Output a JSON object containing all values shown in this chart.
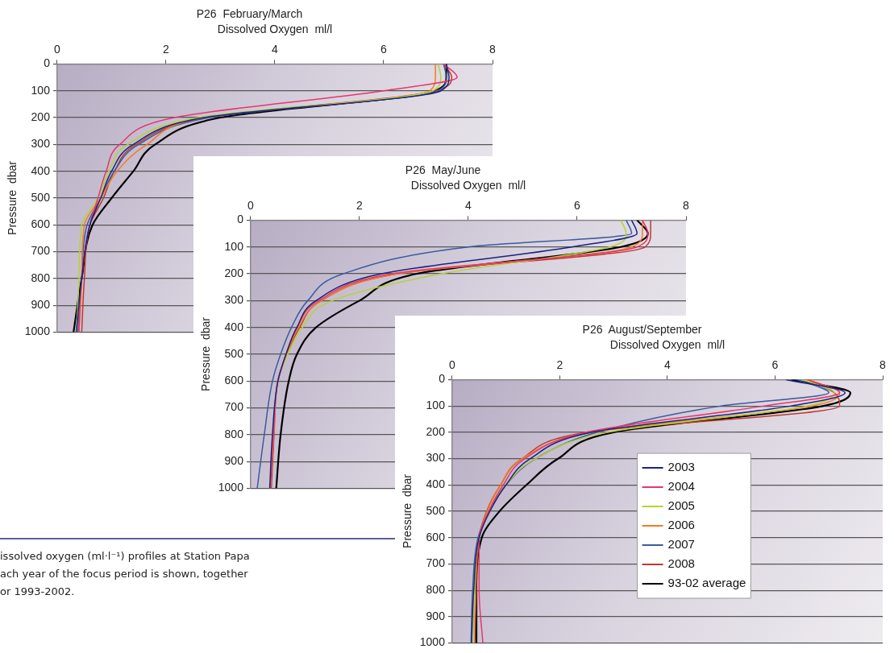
{
  "chart_data": [
    {
      "type": "line",
      "title": "P26  February/March",
      "xlabel": "Dissolved Oxygen  ml/l",
      "ylabel": "Pressure  dbar",
      "xlim": [
        0,
        8
      ],
      "xticks": [
        0,
        2,
        4,
        6,
        8
      ],
      "ylim": [
        1000,
        0
      ],
      "yticks": [
        0,
        100,
        200,
        300,
        400,
        500,
        600,
        700,
        800,
        900,
        1000
      ],
      "grid": "y",
      "legend": false,
      "line_style": "solid",
      "annotations": [
        "issolved oxygen (ml·l⁻¹) profiles at Station Papa",
        "ach year of the focus period is shown, together",
        "or 1993-2002."
      ],
      "series": [
        {
          "color": "#1a237e",
          "x": [
            7.15,
            7.2,
            7.05,
            2.7,
            1.4,
            1.0,
            0.8,
            0.6,
            0.45,
            0.35
          ],
          "values": [
            0,
            50,
            100,
            200,
            300,
            400,
            500,
            600,
            800,
            1000
          ]
        },
        {
          "color": "#e8356d",
          "x": [
            7.1,
            7.35,
            6.0,
            2.15,
            1.15,
            0.9,
            0.75,
            0.6,
            0.45,
            0.4
          ],
          "values": [
            0,
            50,
            100,
            200,
            300,
            400,
            500,
            600,
            800,
            1000
          ]
        },
        {
          "color": "#b5d334",
          "x": [
            7.0,
            7.05,
            6.9,
            2.6,
            1.3,
            0.95,
            0.75,
            0.45,
            0.4,
            0.35
          ],
          "values": [
            0,
            50,
            100,
            200,
            300,
            400,
            500,
            600,
            800,
            1000
          ]
        },
        {
          "color": "#f47b20",
          "x": [
            6.95,
            6.95,
            6.85,
            2.7,
            1.65,
            1.1,
            0.8,
            0.5,
            0.45,
            0.4
          ],
          "values": [
            0,
            50,
            100,
            200,
            300,
            400,
            500,
            600,
            800,
            1000
          ]
        },
        {
          "color": "#3a5ba0",
          "x": [
            7.1,
            7.15,
            7.0,
            2.8,
            1.5,
            1.05,
            0.8,
            0.55,
            0.45,
            0.38
          ],
          "values": [
            0,
            50,
            100,
            200,
            300,
            400,
            500,
            600,
            800,
            1000
          ]
        },
        {
          "color": "#c0392b",
          "x": [
            7.1,
            7.25,
            6.95,
            2.75,
            1.45,
            1.05,
            0.85,
            0.6,
            0.5,
            0.45
          ],
          "values": [
            0,
            50,
            100,
            200,
            300,
            400,
            500,
            600,
            800,
            1000
          ]
        },
        {
          "color": "#000000",
          "x": [
            7.15,
            7.15,
            6.95,
            3.0,
            1.8,
            1.4,
            1.0,
            0.65,
            0.45,
            0.3
          ],
          "values": [
            0,
            50,
            100,
            200,
            300,
            400,
            500,
            600,
            800,
            1000
          ]
        }
      ]
    },
    {
      "type": "line",
      "title": "P26  May/June",
      "xlabel": "Dissolved Oxygen  ml/l",
      "ylabel": "Pressure  dbar",
      "xlim": [
        0,
        8
      ],
      "xticks": [
        0,
        2,
        4,
        6,
        8
      ],
      "ylim": [
        1000,
        0
      ],
      "yticks": [
        0,
        100,
        200,
        300,
        400,
        500,
        600,
        700,
        800,
        900,
        1000
      ],
      "grid": "y",
      "legend": false,
      "line_style": "solid",
      "series": [
        {
          "color": "#1a237e",
          "x": [
            7.0,
            7.1,
            5.9,
            2.4,
            1.2,
            0.85,
            0.65,
            0.5,
            0.4,
            0.35
          ],
          "values": [
            0,
            50,
            100,
            200,
            300,
            400,
            500,
            600,
            800,
            1000
          ]
        },
        {
          "color": "#e8356d",
          "x": [
            7.2,
            7.3,
            7.1,
            2.6,
            1.25,
            0.85,
            0.65,
            0.5,
            0.42,
            0.36
          ],
          "values": [
            0,
            50,
            100,
            200,
            300,
            400,
            500,
            600,
            800,
            1000
          ]
        },
        {
          "color": "#b5d334",
          "x": [
            6.8,
            6.9,
            6.6,
            3.5,
            1.5,
            0.95,
            0.68,
            0.5,
            0.42,
            0.36
          ],
          "values": [
            0,
            50,
            100,
            200,
            300,
            400,
            500,
            600,
            800,
            1000
          ]
        },
        {
          "color": "#f47b20",
          "x": [
            7.2,
            7.2,
            7.0,
            2.7,
            1.3,
            0.88,
            0.66,
            0.5,
            0.42,
            0.36
          ],
          "values": [
            0,
            50,
            100,
            200,
            300,
            400,
            500,
            600,
            800,
            1000
          ]
        },
        {
          "color": "#3a5ba0",
          "x": [
            6.9,
            7.0,
            4.0,
            1.7,
            1.05,
            0.75,
            0.55,
            0.4,
            0.25,
            0.12
          ],
          "values": [
            0,
            50,
            100,
            200,
            300,
            400,
            500,
            600,
            800,
            1000
          ]
        },
        {
          "color": "#c0392b",
          "x": [
            7.35,
            7.35,
            7.25,
            2.7,
            1.3,
            0.9,
            0.67,
            0.5,
            0.43,
            0.38
          ],
          "values": [
            0,
            50,
            100,
            200,
            300,
            400,
            500,
            600,
            800,
            1000
          ]
        },
        {
          "color": "#000000",
          "x": [
            7.1,
            7.3,
            6.8,
            3.05,
            2.0,
            1.2,
            0.85,
            0.7,
            0.55,
            0.47
          ],
          "values": [
            0,
            50,
            100,
            200,
            300,
            400,
            500,
            600,
            800,
            1000
          ]
        }
      ]
    },
    {
      "type": "line",
      "title": "P26  August/September",
      "xlabel": "Dissolved Oxygen  ml/l",
      "ylabel": "Pressure  dbar",
      "xlim": [
        0,
        8
      ],
      "xticks": [
        0,
        2,
        4,
        6,
        8
      ],
      "ylim": [
        1000,
        0
      ],
      "yticks": [
        0,
        100,
        200,
        300,
        400,
        500,
        600,
        700,
        800,
        900,
        1000
      ],
      "grid": "y",
      "legend": "right",
      "line_style": "solid",
      "series": [
        {
          "name": "2003",
          "color": "#1a237e",
          "x": [
            6.2,
            7.3,
            6.3,
            2.6,
            1.45,
            1.0,
            0.7,
            0.5,
            0.4,
            0.36
          ],
          "values": [
            0,
            50,
            100,
            200,
            300,
            400,
            500,
            600,
            800,
            1000
          ]
        },
        {
          "name": "2004",
          "color": "#e8356d",
          "x": [
            6.6,
            7.2,
            5.8,
            2.5,
            1.35,
            0.95,
            0.68,
            0.5,
            0.5,
            0.57
          ],
          "values": [
            0,
            50,
            100,
            200,
            300,
            400,
            500,
            600,
            800,
            1000
          ]
        },
        {
          "name": "2005",
          "color": "#b5d334",
          "x": [
            6.5,
            7.1,
            6.6,
            2.9,
            1.55,
            1.0,
            0.7,
            0.5,
            0.42,
            0.4
          ],
          "values": [
            0,
            50,
            100,
            200,
            300,
            400,
            500,
            600,
            800,
            1000
          ]
        },
        {
          "name": "2006",
          "color": "#f47b20",
          "x": [
            6.6,
            7.2,
            6.7,
            2.6,
            1.3,
            0.9,
            0.65,
            0.5,
            0.42,
            0.4
          ],
          "values": [
            0,
            50,
            100,
            200,
            300,
            400,
            500,
            600,
            800,
            1000
          ]
        },
        {
          "name": "2007",
          "color": "#3a5ba0",
          "x": [
            6.4,
            7.0,
            5.0,
            2.7,
            1.55,
            1.0,
            0.68,
            0.48,
            0.38,
            0.35
          ],
          "values": [
            0,
            50,
            100,
            200,
            300,
            400,
            500,
            600,
            800,
            1000
          ]
        },
        {
          "name": "2008",
          "color": "#c0392b",
          "x": [
            6.6,
            7.1,
            7.2,
            2.5,
            1.3,
            0.9,
            0.64,
            0.5,
            0.45,
            0.42
          ],
          "values": [
            0,
            50,
            100,
            200,
            300,
            400,
            500,
            600,
            800,
            1000
          ]
        },
        {
          "name": "93-02 average",
          "color": "#000000",
          "x": [
            6.3,
            7.4,
            6.9,
            3.0,
            1.97,
            1.38,
            0.88,
            0.55,
            0.45,
            0.45
          ],
          "values": [
            0,
            50,
            100,
            200,
            300,
            400,
            500,
            600,
            800,
            1000
          ]
        }
      ]
    }
  ]
}
